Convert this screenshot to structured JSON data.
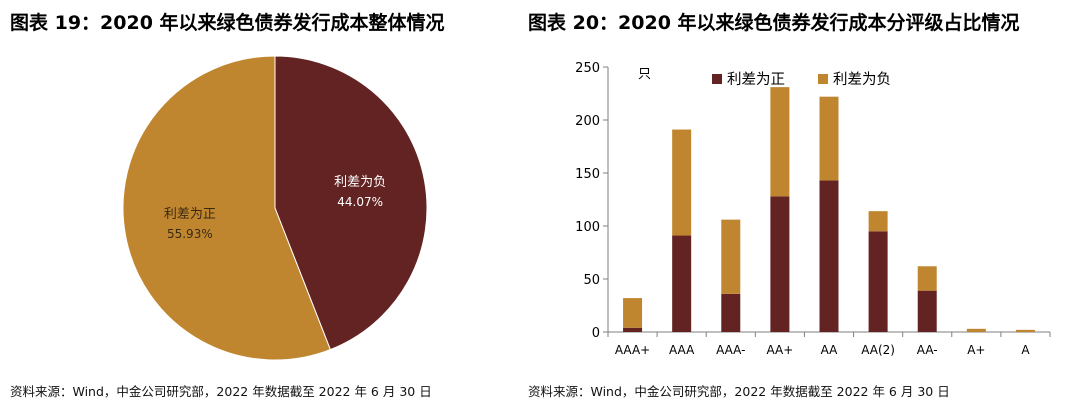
{
  "colors": {
    "positive": "#632323",
    "negative": "#C0862F",
    "axis": "#7f7f7f"
  },
  "pie_panel": {
    "title": "图表 19：2020 年以来绿色债券发行成本整体情况",
    "source": "资料来源：Wind，中金公司研究部，2022 年数据截至 2022 年 6 月 30 日"
  },
  "bar_panel": {
    "title": "图表 20：2020 年以来绿色债券发行成本分评级占比情况",
    "source": "资料来源：Wind，中金公司研究部，2022 年数据截至 2022 年 6 月 30 日",
    "unit": "只"
  },
  "chart_data": [
    {
      "type": "pie",
      "slices": [
        {
          "label": "利差为负",
          "value": 44.07,
          "value_label": "44.07%",
          "color": "#632323"
        },
        {
          "label": "利差为正",
          "value": 55.93,
          "value_label": "55.93%",
          "color": "#C0862F"
        }
      ],
      "start_angle_deg": 0,
      "direction": "clockwise"
    },
    {
      "type": "bar",
      "stacked": true,
      "categories": [
        "AAA+",
        "AAA",
        "AAA-",
        "AA+",
        "AA",
        "AA(2)",
        "AA-",
        "A+",
        "A"
      ],
      "series": [
        {
          "name": "利差为正",
          "color": "#632323",
          "values": [
            4,
            91,
            36,
            128,
            143,
            95,
            39,
            0,
            0
          ]
        },
        {
          "name": "利差为负",
          "color": "#C0862F",
          "values": [
            28,
            100,
            70,
            103,
            79,
            19,
            23,
            3,
            2
          ]
        }
      ],
      "ylim": [
        0,
        250
      ],
      "yticks": [
        0,
        50,
        100,
        150,
        200,
        250
      ],
      "ylabel": "只",
      "legend": "top",
      "grid": false
    }
  ]
}
